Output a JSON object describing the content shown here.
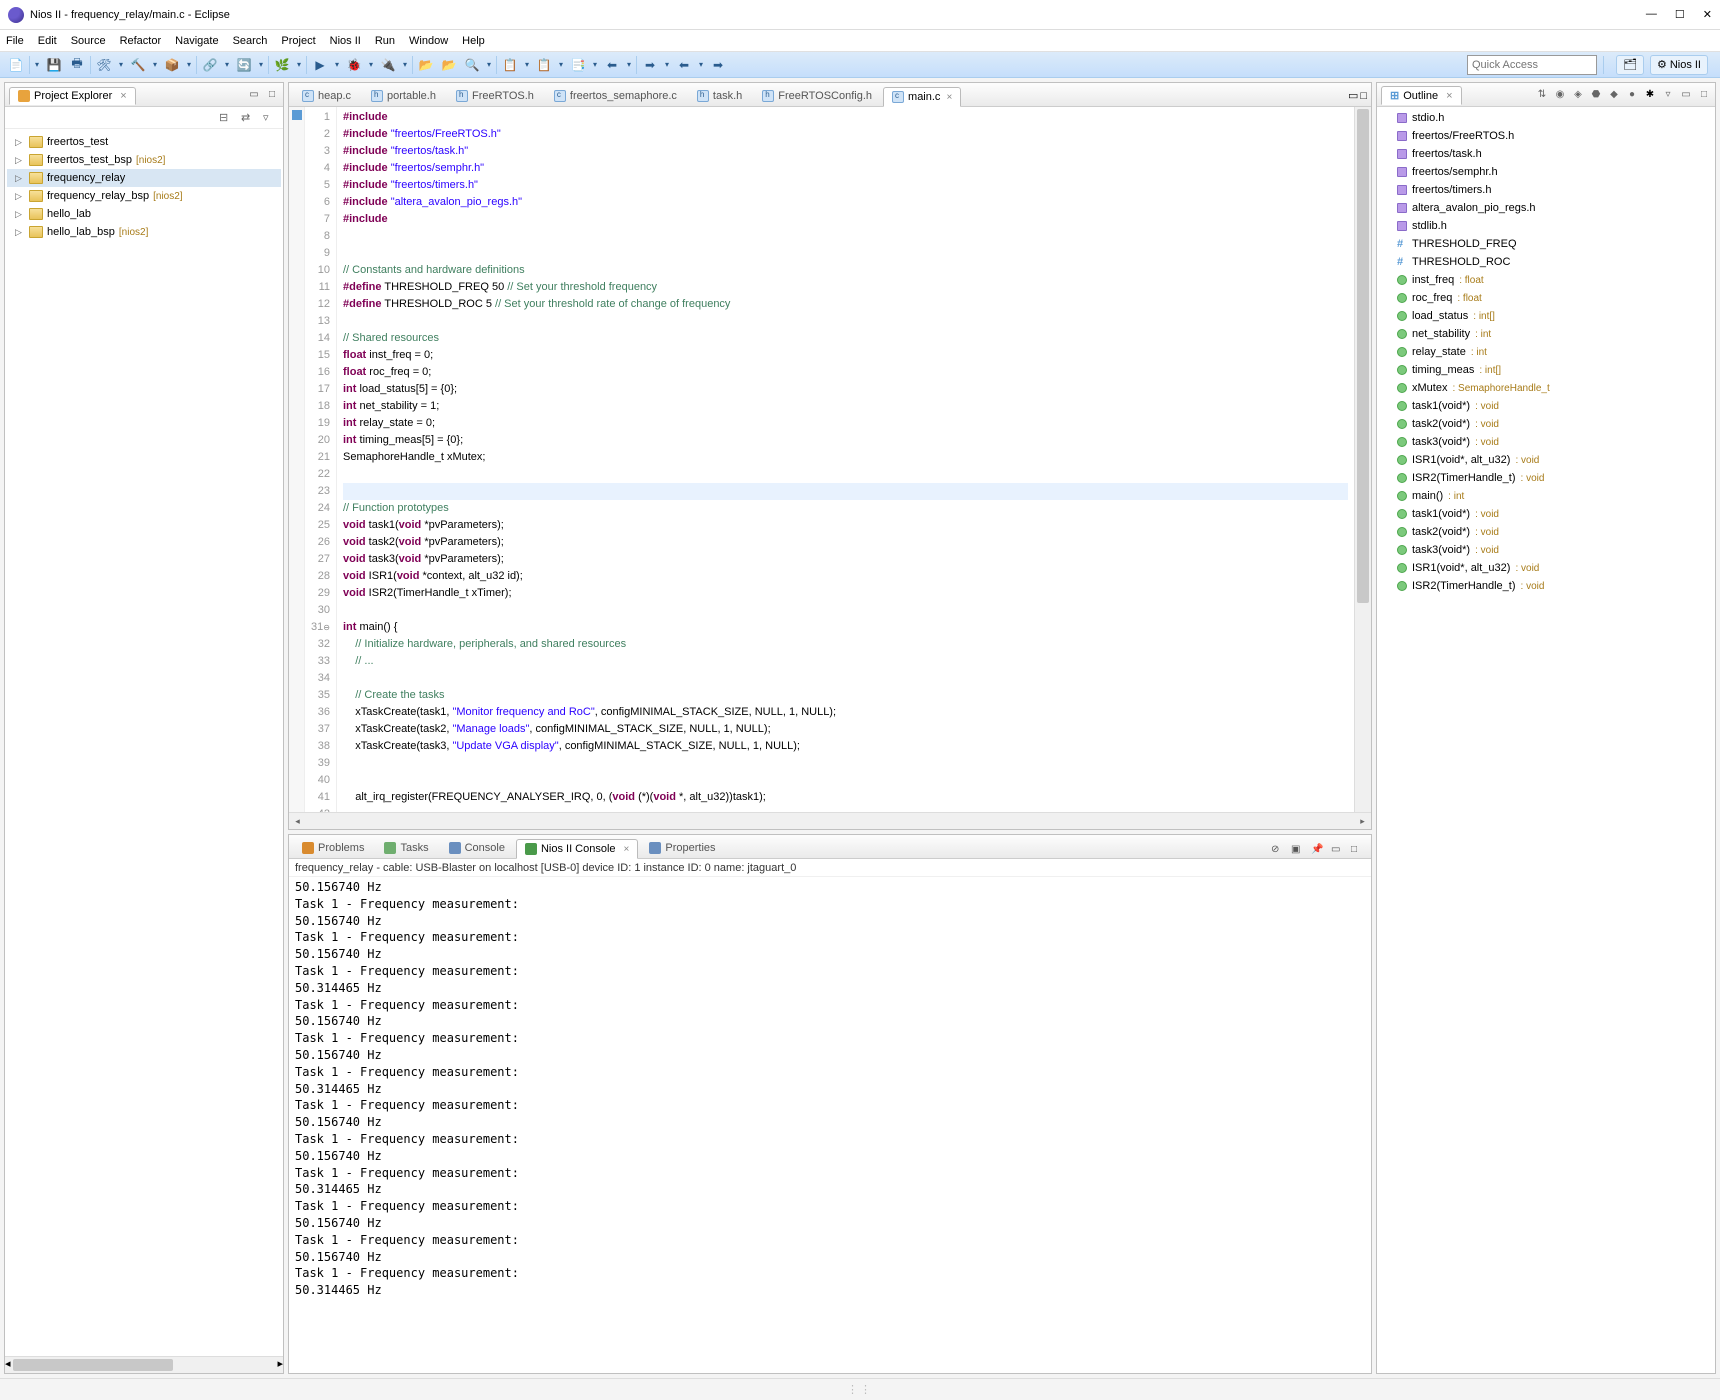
{
  "window": {
    "title": "Nios II - frequency_relay/main.c - Eclipse"
  },
  "menu": [
    "File",
    "Edit",
    "Source",
    "Refactor",
    "Navigate",
    "Search",
    "Project",
    "Nios II",
    "Run",
    "Window",
    "Help"
  ],
  "toolbar_icons": [
    "📄",
    "▾",
    "💾",
    "🖶",
    "🛠",
    "▾",
    "🔨",
    "▾",
    "📦",
    "▾",
    "🔗",
    "▾",
    "🔄",
    "▾",
    "🌿",
    "▾",
    "▶",
    "▾",
    "🐞",
    "▾",
    "🔌",
    "▾",
    "📂",
    "📂",
    "🔍",
    "▾",
    "📋",
    "▾",
    "📋",
    "▾",
    "📑",
    "▾",
    "⬅",
    "▾",
    "➡",
    "▾",
    "⬅",
    "▾",
    "➡"
  ],
  "quick_access": "Quick Access",
  "perspective": "Nios II",
  "project_explorer": {
    "title": "Project Explorer",
    "items": [
      {
        "name": "freertos_test",
        "decor": ""
      },
      {
        "name": "freertos_test_bsp",
        "decor": "[nios2]"
      },
      {
        "name": "frequency_relay",
        "decor": "",
        "selected": true
      },
      {
        "name": "frequency_relay_bsp",
        "decor": "[nios2]"
      },
      {
        "name": "hello_lab",
        "decor": ""
      },
      {
        "name": "hello_lab_bsp",
        "decor": "[nios2]"
      }
    ]
  },
  "editor_tabs": [
    {
      "label": "heap.c",
      "kind": "c"
    },
    {
      "label": "portable.h",
      "kind": "h"
    },
    {
      "label": "FreeRTOS.h",
      "kind": "h"
    },
    {
      "label": "freertos_semaphore.c",
      "kind": "c"
    },
    {
      "label": "task.h",
      "kind": "h"
    },
    {
      "label": "FreeRTOSConfig.h",
      "kind": "h"
    },
    {
      "label": "main.c",
      "kind": "c",
      "active": true
    }
  ],
  "code_lines": [
    {
      "n": 1,
      "t": "inc",
      "a": "#include ",
      "b": "<stdio.h>"
    },
    {
      "n": 2,
      "t": "inc",
      "a": "#include ",
      "b": "\"freertos/FreeRTOS.h\""
    },
    {
      "n": 3,
      "t": "inc",
      "a": "#include ",
      "b": "\"freertos/task.h\""
    },
    {
      "n": 4,
      "t": "inc",
      "a": "#include ",
      "b": "\"freertos/semphr.h\""
    },
    {
      "n": 5,
      "t": "inc",
      "a": "#include ",
      "b": "\"freertos/timers.h\""
    },
    {
      "n": 6,
      "t": "inc",
      "a": "#include ",
      "b": "\"altera_avalon_pio_regs.h\""
    },
    {
      "n": 7,
      "t": "inc",
      "a": "#include ",
      "b": "<stdlib.h>"
    },
    {
      "n": 8,
      "t": "blank"
    },
    {
      "n": 9,
      "t": "blank"
    },
    {
      "n": 10,
      "t": "cm",
      "a": "// Constants and hardware definitions"
    },
    {
      "n": 11,
      "t": "def",
      "a": "#define",
      "b": " THRESHOLD_FREQ 50 ",
      "c": "// Set your threshold frequency"
    },
    {
      "n": 12,
      "t": "def",
      "a": "#define",
      "b": " THRESHOLD_ROC 5 ",
      "c": "// Set your threshold rate of change of frequency"
    },
    {
      "n": 13,
      "t": "blank"
    },
    {
      "n": 14,
      "t": "cm",
      "a": "// Shared resources"
    },
    {
      "n": 15,
      "t": "decl",
      "a": "float",
      "b": " inst_freq = 0;"
    },
    {
      "n": 16,
      "t": "decl",
      "a": "float",
      "b": " roc_freq = 0;"
    },
    {
      "n": 17,
      "t": "decl",
      "a": "int",
      "b": " load_status[5] = {0};"
    },
    {
      "n": 18,
      "t": "decl",
      "a": "int",
      "b": " net_stability = 1;"
    },
    {
      "n": 19,
      "t": "decl",
      "a": "int",
      "b": " relay_state = 0;"
    },
    {
      "n": 20,
      "t": "decl",
      "a": "int",
      "b": " timing_meas[5] = {0};"
    },
    {
      "n": 21,
      "t": "plain",
      "a": "SemaphoreHandle_t xMutex;"
    },
    {
      "n": 22,
      "t": "blank"
    },
    {
      "n": 23,
      "t": "blank",
      "hl": true
    },
    {
      "n": 24,
      "t": "cm",
      "a": "// Function prototypes"
    },
    {
      "n": 25,
      "t": "proto",
      "a": "void",
      "b": " task1(",
      "c": "void",
      "d": " *pvParameters);"
    },
    {
      "n": 26,
      "t": "proto",
      "a": "void",
      "b": " task2(",
      "c": "void",
      "d": " *pvParameters);"
    },
    {
      "n": 27,
      "t": "proto",
      "a": "void",
      "b": " task3(",
      "c": "void",
      "d": " *pvParameters);"
    },
    {
      "n": 28,
      "t": "proto",
      "a": "void",
      "b": " ISR1(",
      "c": "void",
      "d": " *context, alt_u32 id);"
    },
    {
      "n": 29,
      "t": "plain2",
      "a": "void",
      "b": " ISR2(TimerHandle_t xTimer);"
    },
    {
      "n": 30,
      "t": "blank"
    },
    {
      "n": 31,
      "t": "main",
      "a": "int",
      "b": " main() {",
      "fold": true
    },
    {
      "n": 32,
      "t": "cmind",
      "a": "    // Initialize hardware, peripherals, and shared resources"
    },
    {
      "n": 33,
      "t": "cmind",
      "a": "    // ..."
    },
    {
      "n": 34,
      "t": "blank"
    },
    {
      "n": 35,
      "t": "cmind",
      "a": "    // Create the tasks"
    },
    {
      "n": 36,
      "t": "call",
      "a": "    xTaskCreate(task1, ",
      "b": "\"Monitor frequency and RoC\"",
      "c": ", configMINIMAL_STACK_SIZE, NULL, 1, NULL);"
    },
    {
      "n": 37,
      "t": "call",
      "a": "    xTaskCreate(task2, ",
      "b": "\"Manage loads\"",
      "c": ", configMINIMAL_STACK_SIZE, NULL, 1, NULL);"
    },
    {
      "n": 38,
      "t": "call",
      "a": "    xTaskCreate(task3, ",
      "b": "\"Update VGA display\"",
      "c": ", configMINIMAL_STACK_SIZE, NULL, 1, NULL);"
    },
    {
      "n": 39,
      "t": "blank"
    },
    {
      "n": 40,
      "t": "blank"
    },
    {
      "n": 41,
      "t": "call2",
      "a": "    alt_irq_register(FREQUENCY_ANALYSER_IRQ, 0, (",
      "b": "void",
      "c": " (*)(",
      "d": "void",
      "e": " *, alt_u32))task1);"
    },
    {
      "n": 42,
      "t": "blank"
    }
  ],
  "outline": {
    "title": "Outline",
    "items": [
      {
        "icon": "purple",
        "label": "stdio.h"
      },
      {
        "icon": "purple",
        "label": "freertos/FreeRTOS.h"
      },
      {
        "icon": "purple",
        "label": "freertos/task.h"
      },
      {
        "icon": "purple",
        "label": "freertos/semphr.h"
      },
      {
        "icon": "purple",
        "label": "freertos/timers.h"
      },
      {
        "icon": "purple",
        "label": "altera_avalon_pio_regs.h"
      },
      {
        "icon": "purple",
        "label": "stdlib.h"
      },
      {
        "icon": "hash",
        "label": "THRESHOLD_FREQ"
      },
      {
        "icon": "hash",
        "label": "THRESHOLD_ROC"
      },
      {
        "icon": "green",
        "label": "inst_freq",
        "type": ": float"
      },
      {
        "icon": "green",
        "label": "roc_freq",
        "type": ": float"
      },
      {
        "icon": "green",
        "label": "load_status",
        "type": ": int[]"
      },
      {
        "icon": "green",
        "label": "net_stability",
        "type": ": int"
      },
      {
        "icon": "green",
        "label": "relay_state",
        "type": ": int"
      },
      {
        "icon": "green",
        "label": "timing_meas",
        "type": ": int[]"
      },
      {
        "icon": "green",
        "label": "xMutex",
        "type": ": SemaphoreHandle_t"
      },
      {
        "icon": "greenp",
        "label": "task1(void*)",
        "type": ": void"
      },
      {
        "icon": "greenp",
        "label": "task2(void*)",
        "type": ": void"
      },
      {
        "icon": "greenp",
        "label": "task3(void*)",
        "type": ": void"
      },
      {
        "icon": "greenp",
        "label": "ISR1(void*, alt_u32)",
        "type": ": void"
      },
      {
        "icon": "greenp",
        "label": "ISR2(TimerHandle_t)",
        "type": ": void"
      },
      {
        "icon": "green",
        "label": "main()",
        "type": ": int"
      },
      {
        "icon": "green",
        "label": "task1(void*)",
        "type": ": void"
      },
      {
        "icon": "green",
        "label": "task2(void*)",
        "type": ": void"
      },
      {
        "icon": "green",
        "label": "task3(void*)",
        "type": ": void"
      },
      {
        "icon": "green",
        "label": "ISR1(void*, alt_u32)",
        "type": ": void"
      },
      {
        "icon": "green",
        "label": "ISR2(TimerHandle_t)",
        "type": ": void"
      }
    ]
  },
  "bottom_tabs": [
    {
      "label": "Problems",
      "icon": "#d98b2f"
    },
    {
      "label": "Tasks",
      "icon": "#6fae6f"
    },
    {
      "label": "Console",
      "icon": "#6a8fbf"
    },
    {
      "label": "Nios II Console",
      "icon": "#4a9a4a",
      "active": true
    },
    {
      "label": "Properties",
      "icon": "#6a8fbf"
    }
  ],
  "console_info": "frequency_relay - cable: USB-Blaster on localhost [USB-0] device ID: 1 instance ID: 0 name: jtaguart_0",
  "console_lines": [
    "50.156740 Hz",
    "Task 1 - Frequency measurement:",
    "50.156740 Hz",
    "Task 1 - Frequency measurement:",
    "50.156740 Hz",
    "Task 1 - Frequency measurement:",
    "50.314465 Hz",
    "Task 1 - Frequency measurement:",
    "50.156740 Hz",
    "Task 1 - Frequency measurement:",
    "50.156740 Hz",
    "Task 1 - Frequency measurement:",
    "50.314465 Hz",
    "Task 1 - Frequency measurement:",
    "50.156740 Hz",
    "Task 1 - Frequency measurement:",
    "50.156740 Hz",
    "Task 1 - Frequency measurement:",
    "50.314465 Hz",
    "Task 1 - Frequency measurement:",
    "50.156740 Hz",
    "Task 1 - Frequency measurement:",
    "50.156740 Hz",
    "Task 1 - Frequency measurement:",
    "50.314465 Hz"
  ]
}
